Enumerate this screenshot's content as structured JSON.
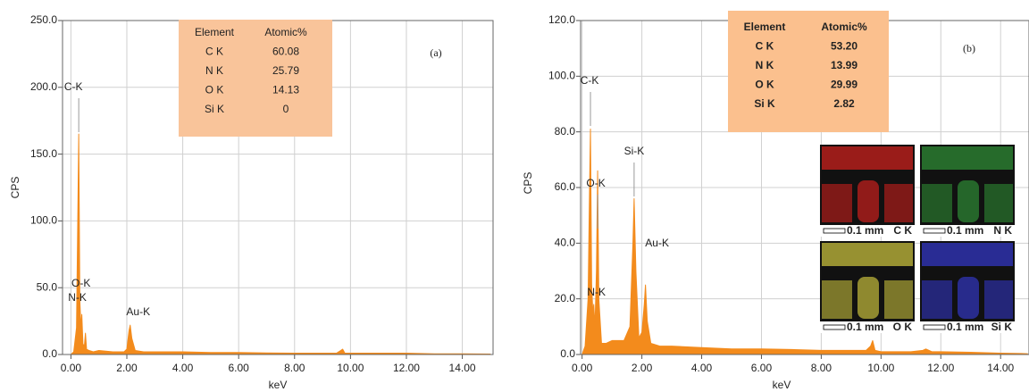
{
  "chart_data": [
    {
      "type": "area",
      "panel_label": "(a)",
      "x_label": "keV",
      "y_label": "CPS",
      "color": "#f38b1c",
      "grid": true,
      "xlim": [
        -0.3,
        15.1
      ],
      "xticks": [
        {
          "value": 0,
          "label": "0.00"
        },
        {
          "value": 2,
          "label": "2.00"
        },
        {
          "value": 4,
          "label": "4.00"
        },
        {
          "value": 6,
          "label": "6.00"
        },
        {
          "value": 8,
          "label": "8.00"
        },
        {
          "value": 10,
          "label": "10.00"
        },
        {
          "value": 12,
          "label": "12.00"
        },
        {
          "value": 14,
          "label": "14.00"
        }
      ],
      "ylim": [
        0,
        250
      ],
      "yticks": [
        {
          "value": 0,
          "label": "0.0"
        },
        {
          "value": 50,
          "label": "50.0"
        },
        {
          "value": 100,
          "label": "100.0"
        },
        {
          "value": 150,
          "label": "150.0"
        },
        {
          "value": 200,
          "label": "200.0"
        },
        {
          "value": 250,
          "label": "250.0"
        }
      ],
      "x": [
        0,
        0.1,
        0.2,
        0.25,
        0.28,
        0.32,
        0.36,
        0.39,
        0.43,
        0.48,
        0.52,
        0.56,
        0.65,
        0.8,
        1.0,
        1.5,
        1.9,
        2.0,
        2.08,
        2.12,
        2.18,
        2.3,
        2.6,
        3,
        4,
        5,
        6,
        7,
        8,
        9,
        9.5,
        9.65,
        9.72,
        9.8,
        10,
        11,
        12,
        13,
        14,
        15
      ],
      "values": [
        0,
        2,
        20,
        110,
        165,
        40,
        20,
        30,
        8,
        6,
        16,
        4,
        3,
        2,
        3,
        2,
        2,
        4,
        18,
        22,
        12,
        3,
        2,
        2,
        2,
        1.5,
        1.5,
        1.2,
        1,
        1,
        1,
        3,
        4,
        1,
        1,
        1,
        1,
        0.5,
        0.5,
        0.3
      ],
      "annotations": [
        {
          "text": "C-K",
          "x": 0.28
        },
        {
          "text": "O-K",
          "x": 0.52
        },
        {
          "text": "N-K",
          "x": 0.39
        },
        {
          "text": "Au-K",
          "x": 2.12
        }
      ],
      "table": {
        "header": [
          "Element",
          "Atomic%"
        ],
        "rows": [
          [
            "C K",
            "60.08"
          ],
          [
            "N K",
            "25.79"
          ],
          [
            "O K",
            "14.13"
          ],
          [
            "Si K",
            "0"
          ]
        ]
      }
    },
    {
      "type": "area",
      "panel_label": "(b)",
      "x_label": "keV",
      "y_label": "CPS",
      "color": "#f38b1c",
      "grid": true,
      "xlim": [
        -0.05,
        14.95
      ],
      "xticks": [
        {
          "value": 0,
          "label": "0.00"
        },
        {
          "value": 2,
          "label": "2.00"
        },
        {
          "value": 4,
          "label": "4.00"
        },
        {
          "value": 6,
          "label": "6.00"
        },
        {
          "value": 8,
          "label": "8.00"
        },
        {
          "value": 10,
          "label": "10.00"
        },
        {
          "value": 12,
          "label": "12.00"
        },
        {
          "value": 14,
          "label": "14.00"
        }
      ],
      "ylim": [
        0,
        120
      ],
      "yticks": [
        {
          "value": 0,
          "label": "0.0"
        },
        {
          "value": 20,
          "label": "20.0"
        },
        {
          "value": 40,
          "label": "40.0"
        },
        {
          "value": 60,
          "label": "60.0"
        },
        {
          "value": 80,
          "label": "80.0"
        },
        {
          "value": 100,
          "label": "100.0"
        },
        {
          "value": 120,
          "label": "120.0"
        }
      ],
      "x": [
        0,
        0.1,
        0.2,
        0.25,
        0.28,
        0.32,
        0.36,
        0.39,
        0.43,
        0.48,
        0.52,
        0.56,
        0.65,
        0.8,
        1.0,
        1.4,
        1.6,
        1.7,
        1.74,
        1.8,
        1.9,
        2.0,
        2.08,
        2.12,
        2.18,
        2.3,
        2.6,
        3,
        4,
        5,
        6,
        7,
        8,
        9,
        9.5,
        9.65,
        9.72,
        9.8,
        10,
        11,
        11.4,
        11.5,
        11.7,
        12,
        13,
        14,
        14.9
      ],
      "values": [
        0,
        3,
        20,
        60,
        81,
        25,
        15,
        18,
        10,
        30,
        66,
        20,
        4,
        4,
        5,
        5,
        10,
        40,
        56,
        30,
        6,
        8,
        18,
        25,
        12,
        4,
        3,
        3,
        2.5,
        2,
        2,
        1.8,
        1.5,
        1.5,
        1.5,
        3,
        5,
        1.5,
        1,
        1,
        1.5,
        2,
        1,
        1,
        0.8,
        0.5,
        0.3
      ],
      "annotations": [
        {
          "text": "C-K",
          "x": 0.28
        },
        {
          "text": "O-K",
          "x": 0.52
        },
        {
          "text": "Si-K",
          "x": 1.74
        },
        {
          "text": "N-K",
          "x": 0.39
        },
        {
          "text": "Au-K",
          "x": 2.12
        }
      ],
      "table": {
        "header": [
          "Element",
          "Atomic%"
        ],
        "rows": [
          [
            "C K",
            "53.20"
          ],
          [
            "N K",
            "13.99"
          ],
          [
            "O K",
            "29.99"
          ],
          [
            "Si K",
            "2.82"
          ]
        ]
      },
      "insets": [
        {
          "label": "C K",
          "scale": "0.1 mm",
          "color": "#c8201c"
        },
        {
          "label": "N K",
          "scale": "0.1 mm",
          "color": "#2e8a34"
        },
        {
          "label": "O K",
          "scale": "0.1 mm",
          "color": "#c4bc3c"
        },
        {
          "label": "Si K",
          "scale": "0.1 mm",
          "color": "#3236c0"
        }
      ]
    }
  ]
}
